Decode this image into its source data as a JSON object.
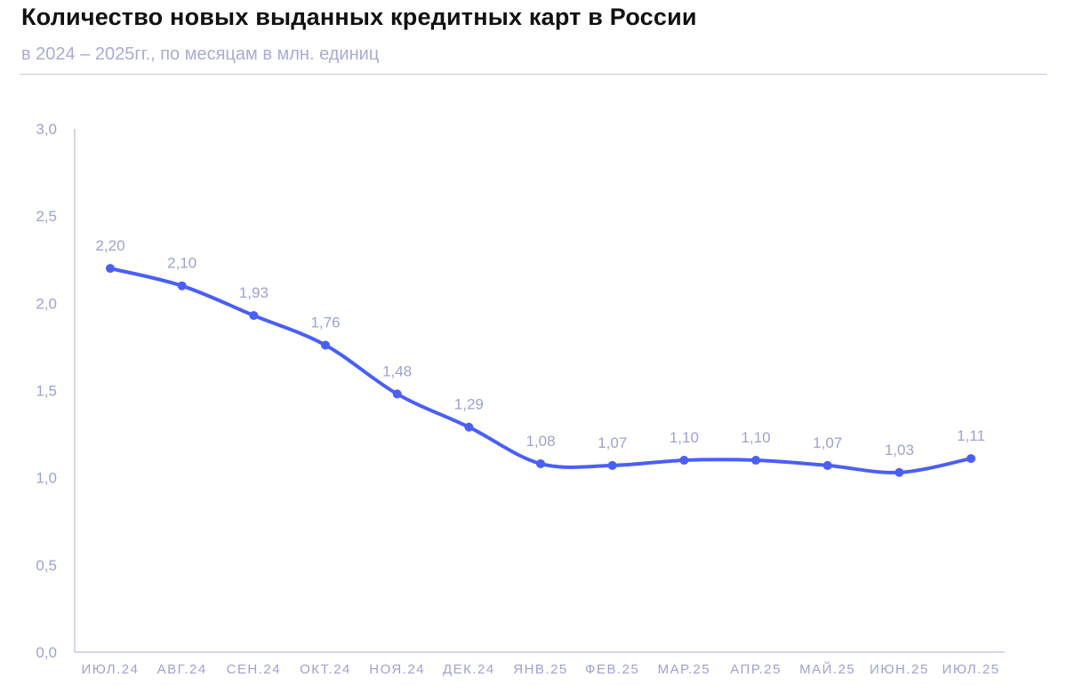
{
  "title": "Количество новых выданных кредитных карт в России",
  "subtitle": "в 2024 – 2025гг., по месяцам в млн. единиц",
  "chart_data": {
    "type": "line",
    "title": "Количество новых выданных кредитных карт в России",
    "subtitle": "в 2024 – 2025гг., по месяцам в млн. единиц",
    "categories": [
      "ИЮЛ.24",
      "АВГ.24",
      "СЕН.24",
      "ОКТ.24",
      "НОЯ.24",
      "ДЕК.24",
      "ЯНВ.25",
      "ФЕВ.25",
      "МАР.25",
      "АПР.25",
      "МАЙ.25",
      "ИЮН.25",
      "ИЮЛ.25"
    ],
    "values": [
      2.2,
      2.1,
      1.93,
      1.76,
      1.48,
      1.29,
      1.08,
      1.07,
      1.1,
      1.1,
      1.07,
      1.03,
      1.11
    ],
    "data_labels": [
      "2,20",
      "2,10",
      "1,93",
      "1,76",
      "1,48",
      "1,29",
      "1,08",
      "1,07",
      "1,10",
      "1,10",
      "1,07",
      "1,03",
      "1,11"
    ],
    "yticks": [
      "0,0",
      "0,5",
      "1,0",
      "1,5",
      "2,0",
      "2,5",
      "3,0"
    ],
    "ylim": [
      0,
      3
    ],
    "smooth": true,
    "grid": false,
    "line_color": "#4a5ff7",
    "text_color": "#9da3cf"
  }
}
